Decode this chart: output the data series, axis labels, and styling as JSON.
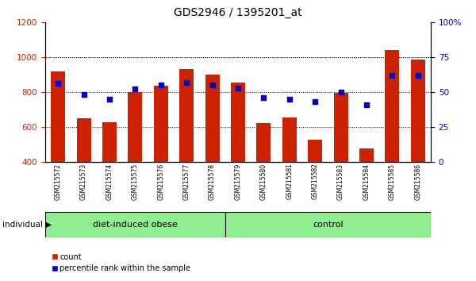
{
  "title": "GDS2946 / 1395201_at",
  "samples": [
    "GSM215572",
    "GSM215573",
    "GSM215574",
    "GSM215575",
    "GSM215576",
    "GSM215577",
    "GSM215578",
    "GSM215579",
    "GSM215580",
    "GSM215581",
    "GSM215582",
    "GSM215583",
    "GSM215584",
    "GSM215585",
    "GSM215586"
  ],
  "counts": [
    920,
    650,
    625,
    800,
    835,
    930,
    900,
    855,
    620,
    655,
    525,
    795,
    475,
    1040,
    985
  ],
  "percentiles": [
    56,
    48,
    45,
    52,
    55,
    57,
    55,
    53,
    46,
    45,
    43,
    50,
    41,
    62,
    62
  ],
  "diet_obese_count": 7,
  "ylim_left": [
    400,
    1200
  ],
  "ylim_right": [
    0,
    100
  ],
  "bar_color": "#cc2200",
  "dot_color": "#0000cc",
  "xlabel_area_color": "#c8c8c8",
  "group_row_color": "#90EE90",
  "individual_label": "individual",
  "legend_count": "count",
  "legend_percentile": "percentile rank within the sample",
  "yticks_left": [
    400,
    600,
    800,
    1000,
    1200
  ],
  "yticks_right": [
    0,
    25,
    50,
    75,
    100
  ],
  "group_labels": [
    "diet-induced obese",
    "control"
  ]
}
